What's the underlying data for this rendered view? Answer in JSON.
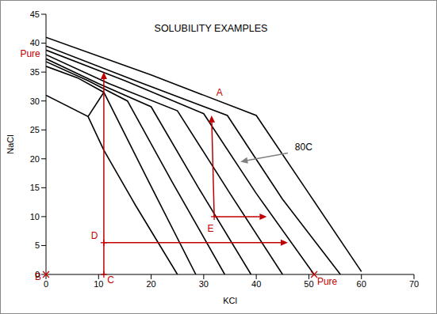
{
  "chart_data": {
    "type": "line",
    "title": "SOLUBILITY EXAMPLES",
    "x_label": "KCl",
    "y_label": "NaCl",
    "xlim": [
      0,
      70
    ],
    "xticks": [
      0,
      10,
      20,
      30,
      40,
      50,
      60,
      70
    ],
    "ylim": [
      0,
      45
    ],
    "yticks": [
      0,
      5,
      10,
      15,
      20,
      25,
      30,
      35,
      40,
      45
    ],
    "grid": false,
    "series": [
      {
        "color": "#000000",
        "x": [
          0,
          20,
          40,
          50,
          60
        ],
        "values": [
          41,
          34.5,
          27.5,
          14,
          0.5
        ]
      },
      {
        "color": "#000000",
        "x": [
          0,
          17,
          34.5,
          45,
          56
        ],
        "values": [
          39.5,
          33.5,
          27.5,
          13,
          0
        ]
      },
      {
        "color": "#000000",
        "x": [
          0,
          15,
          30,
          40,
          51
        ],
        "values": [
          38.8,
          33.5,
          27.8,
          14,
          0
        ]
      },
      {
        "color": "#000000",
        "x": [
          0,
          12,
          25,
          35,
          45
        ],
        "values": [
          38,
          33,
          28.3,
          14,
          0
        ]
      },
      {
        "color": "#000000",
        "x": [
          0,
          10,
          20,
          29,
          39
        ],
        "values": [
          37.3,
          33,
          29,
          15,
          0
        ]
      },
      {
        "color": "#000000",
        "x": [
          0,
          8,
          15.5,
          24,
          34
        ],
        "values": [
          36.8,
          33.5,
          30,
          16,
          0
        ]
      },
      {
        "color": "#000000",
        "x": [
          0,
          6,
          11,
          19,
          28.5
        ],
        "values": [
          36,
          34,
          31.5,
          17,
          0
        ]
      },
      {
        "color": "#000000",
        "x": [
          0,
          8,
          11,
          17,
          25
        ],
        "values": [
          31,
          27.3,
          21.5,
          12,
          0
        ]
      },
      {
        "color": "#000000",
        "x": [
          8,
          11
        ],
        "values": [
          27.3,
          31.5
        ]
      }
    ],
    "arrows": [
      {
        "x": [
          11,
          11
        ],
        "y": [
          0,
          35
        ],
        "color": "#c00000"
      },
      {
        "x": [
          11,
          46
        ],
        "y": [
          5.5,
          5.5
        ],
        "color": "#c00000"
      },
      {
        "x": [
          32,
          31.5
        ],
        "y": [
          10,
          27.5
        ],
        "color": "#c00000"
      },
      {
        "x": [
          32,
          42
        ],
        "y": [
          10,
          10
        ],
        "color": "#c00000"
      },
      {
        "x": [
          46,
          37
        ],
        "y": [
          21,
          19.5
        ],
        "color": "#7f7f7f"
      }
    ],
    "points": [
      {
        "x": 0,
        "y": 0,
        "marker": "x",
        "color": "#c00000"
      },
      {
        "x": 51,
        "y": 0,
        "marker": "x",
        "color": "#c00000"
      },
      {
        "x": 11,
        "y": 0,
        "marker": "+",
        "color": "#c00000"
      },
      {
        "x": 11,
        "y": 5.5,
        "marker": "+",
        "color": "#c00000"
      },
      {
        "x": 32,
        "y": 10,
        "marker": "+",
        "color": "#c00000"
      }
    ],
    "annotations": [
      {
        "text": "Pure",
        "x": -3,
        "y": 38.2,
        "color": "#c00000"
      },
      {
        "text": "B",
        "x": -1.5,
        "y": -0.4,
        "color": "#c00000"
      },
      {
        "text": "C",
        "x": 12.3,
        "y": -0.9,
        "color": "#c00000"
      },
      {
        "text": "D",
        "x": 9.2,
        "y": 6.7,
        "color": "#c00000"
      },
      {
        "text": "E",
        "x": 31.3,
        "y": 8,
        "color": "#c00000"
      },
      {
        "text": "A",
        "x": 33,
        "y": 31.5,
        "color": "#c00000"
      },
      {
        "text": "Pure",
        "x": 53.5,
        "y": -1.2,
        "color": "#c00000"
      },
      {
        "text": "80C",
        "x": 49,
        "y": 22,
        "color": "#000000"
      }
    ]
  }
}
